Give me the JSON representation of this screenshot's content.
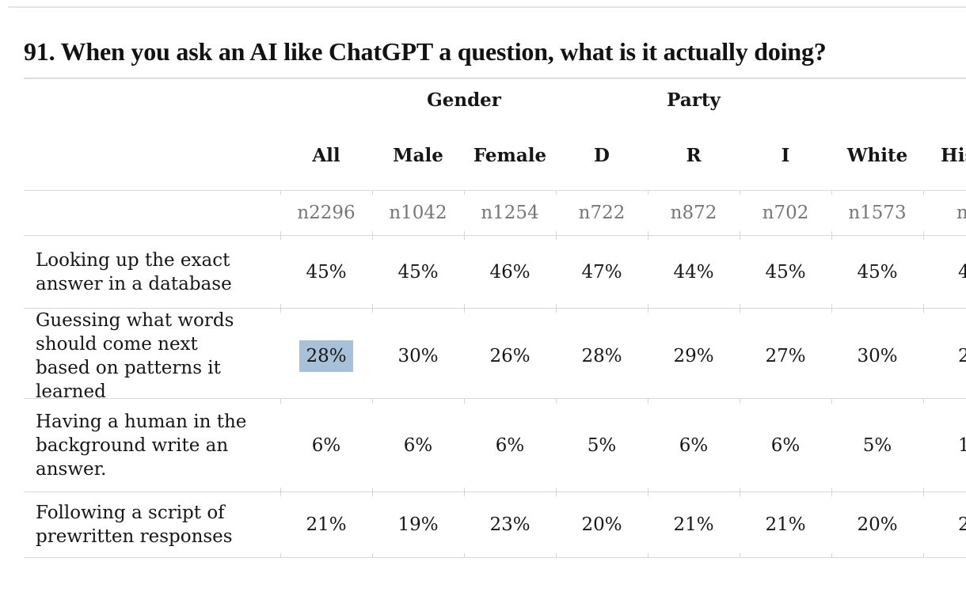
{
  "chart_data": {
    "type": "table",
    "title": "91. When you ask an AI like ChatGPT a question, what is it actually doing?",
    "group_headers": [
      {
        "label": "Gender",
        "spans": [
          "Male",
          "Female"
        ]
      },
      {
        "label": "Party",
        "spans": [
          "D",
          "R",
          "I"
        ]
      }
    ],
    "columns": [
      "All",
      "Male",
      "Female",
      "D",
      "R",
      "I",
      "White",
      "His"
    ],
    "sample_sizes": [
      "n2296",
      "n1042",
      "n1254",
      "n722",
      "n872",
      "n702",
      "n1573",
      "n"
    ],
    "rows": [
      {
        "label": "Looking up the exact answer in a database",
        "values": [
          "45%",
          "45%",
          "46%",
          "47%",
          "44%",
          "45%",
          "45%",
          "4"
        ]
      },
      {
        "label": "Guessing what words should come next based on patterns it learned",
        "values": [
          "28%",
          "30%",
          "26%",
          "28%",
          "29%",
          "27%",
          "30%",
          "2"
        ]
      },
      {
        "label": "Having a human in the background write an answer.",
        "values": [
          "6%",
          "6%",
          "6%",
          "5%",
          "6%",
          "6%",
          "5%",
          "1"
        ]
      },
      {
        "label": "Following a script of prewritten responses",
        "values": [
          "21%",
          "19%",
          "23%",
          "20%",
          "21%",
          "21%",
          "20%",
          "2"
        ]
      }
    ],
    "highlight": {
      "row_index": 1,
      "column": "All",
      "value": "28%",
      "color": "#a7c1d9"
    },
    "layout": {
      "grid": "horizontal rules only, light gray, small ticks at column boundaries",
      "right_column_clipped": true
    },
    "colors": {
      "text": "#161616",
      "sample_size_text": "#767676",
      "rule": "#d8d8d8",
      "highlight": "#a7c1d9"
    }
  }
}
